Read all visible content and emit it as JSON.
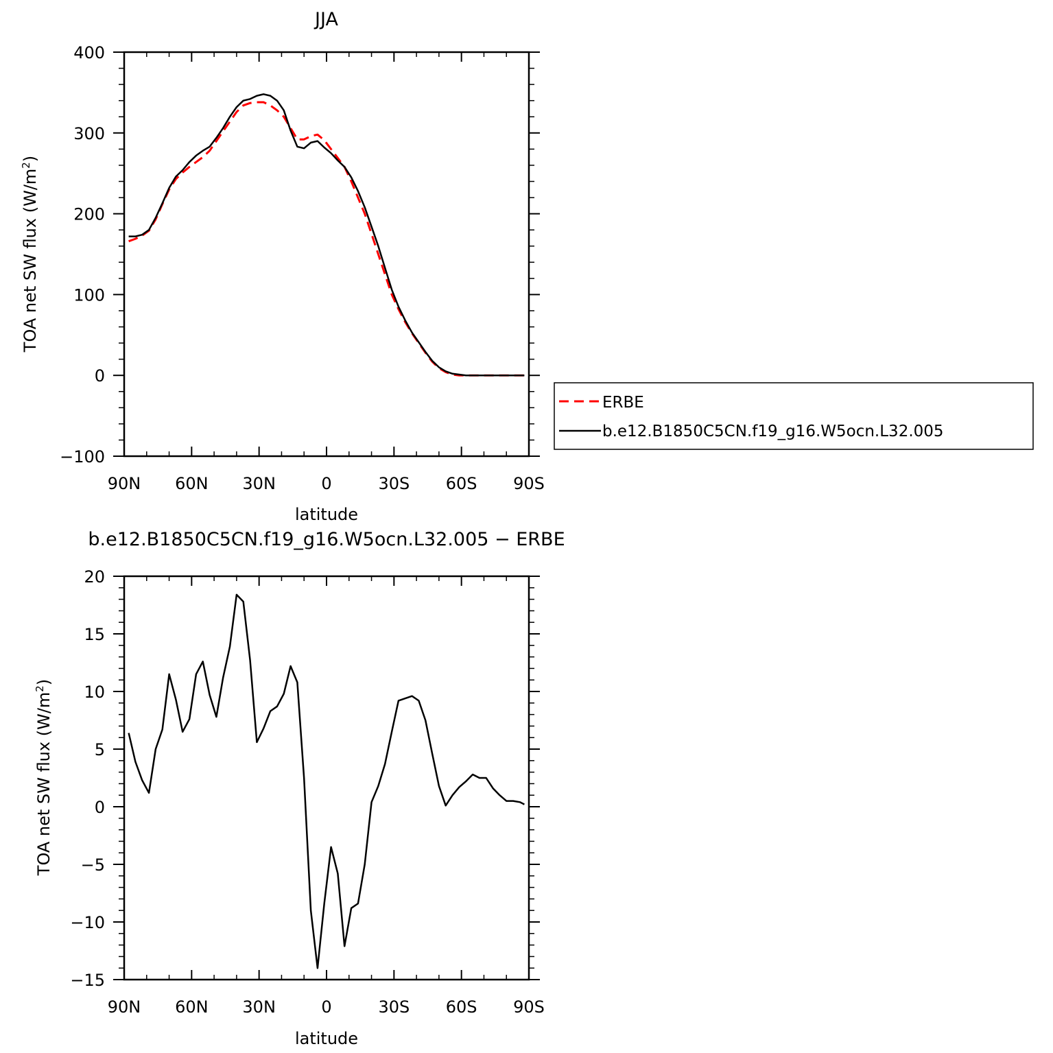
{
  "chart_data": [
    {
      "type": "line",
      "title": "JJA",
      "xlabel": "latitude",
      "ylabel": "TOA net SW flux (W/m",
      "ylabel_sup": "2",
      "ylabel_close": ")",
      "xlim": [
        90,
        -90
      ],
      "ylim": [
        -100,
        400
      ],
      "x_ticks": [
        90,
        60,
        30,
        0,
        -30,
        -60,
        -90
      ],
      "x_tick_labels": [
        "90N",
        "60N",
        "30N",
        "0",
        "30S",
        "60S",
        "90S"
      ],
      "y_ticks": [
        -100,
        0,
        100,
        200,
        300,
        400
      ],
      "y_tick_labels": [
        "−100",
        "0",
        "100",
        "200",
        "300",
        "400"
      ],
      "legend": {
        "placement": "right",
        "entries": [
          {
            "label": "ERBE",
            "color": "#ff0000",
            "dash": "dashed"
          },
          {
            "label": "b.e12.B1850C5CN.f19_g16.W5ocn.L32.005",
            "color": "#000000",
            "dash": "solid"
          }
        ]
      },
      "x": [
        88,
        85,
        82,
        79,
        76,
        73,
        70,
        67,
        64,
        61,
        58,
        55,
        52,
        49,
        46,
        43,
        40,
        37,
        34,
        31,
        28,
        25,
        22,
        19,
        16,
        13,
        10,
        7,
        4,
        1,
        -2,
        -5,
        -8,
        -11,
        -14,
        -17,
        -20,
        -23,
        -26,
        -29,
        -32,
        -35,
        -38,
        -41,
        -44,
        -47,
        -50,
        -53,
        -56,
        -59,
        -62,
        -65,
        -68,
        -71,
        -74,
        -77,
        -80,
        -83,
        -86,
        -88
      ],
      "series": [
        {
          "name": "ERBE",
          "color": "#ff0000",
          "dash": "dashed",
          "values": [
            166,
            169,
            173,
            179,
            193,
            212,
            230,
            243,
            251,
            258,
            264,
            270,
            278,
            290,
            302,
            314,
            326,
            334,
            337,
            338,
            338,
            334,
            328,
            320,
            306,
            292,
            292,
            296,
            298,
            291,
            280,
            269,
            258,
            240,
            220,
            200,
            175,
            150,
            125,
            100,
            82,
            66,
            52,
            40,
            28,
            17,
            9,
            4,
            1,
            0,
            0,
            0,
            0,
            0,
            0,
            0,
            0,
            0,
            0,
            0
          ]
        },
        {
          "name": "b.e12.B1850C5CN.f19_g16.W5ocn.L32.005",
          "color": "#000000",
          "dash": "solid",
          "values": [
            172,
            172,
            174,
            180,
            195,
            213,
            232,
            246,
            254,
            264,
            272,
            278,
            283,
            294,
            306,
            320,
            332,
            340,
            342,
            346,
            348,
            346,
            340,
            328,
            303,
            283,
            281,
            288,
            290,
            282,
            275,
            266,
            258,
            245,
            228,
            208,
            184,
            160,
            133,
            106,
            85,
            68,
            53,
            41,
            29,
            18,
            10,
            5,
            2,
            1,
            0,
            0,
            0,
            0,
            0,
            0,
            0,
            0,
            0,
            0
          ]
        }
      ]
    },
    {
      "type": "line",
      "title": "b.e12.B1850C5CN.f19_g16.W5ocn.L32.005 − ERBE",
      "xlabel": "latitude",
      "ylabel": "TOA net SW flux (W/m",
      "ylabel_sup": "2",
      "ylabel_close": ")",
      "xlim": [
        90,
        -90
      ],
      "ylim": [
        -15,
        20
      ],
      "x_ticks": [
        90,
        60,
        30,
        0,
        -30,
        -60,
        -90
      ],
      "x_tick_labels": [
        "90N",
        "60N",
        "30N",
        "0",
        "30S",
        "60S",
        "90S"
      ],
      "y_ticks": [
        -15,
        -10,
        -5,
        0,
        5,
        10,
        15,
        20
      ],
      "y_tick_labels": [
        "−15",
        "−10",
        "−5",
        "0",
        "5",
        "10",
        "15",
        "20"
      ],
      "x": [
        88,
        85,
        82,
        79,
        76,
        73,
        70,
        67,
        64,
        61,
        58,
        55,
        52,
        49,
        46,
        43,
        40,
        37,
        34,
        31,
        28,
        25,
        22,
        19,
        16,
        13,
        10,
        7,
        4,
        1,
        -2,
        -5,
        -8,
        -11,
        -14,
        -17,
        -20,
        -23,
        -26,
        -29,
        -32,
        -35,
        -38,
        -41,
        -44,
        -47,
        -50,
        -53,
        -56,
        -59,
        -62,
        -65,
        -68,
        -71,
        -74,
        -77,
        -80,
        -83,
        -86,
        -88
      ],
      "series": [
        {
          "name": "",
          "color": "#000000",
          "dash": "solid",
          "values": [
            6.4,
            3.9,
            2.3,
            1.2,
            5.0,
            6.7,
            11.5,
            9.3,
            6.5,
            7.6,
            11.5,
            12.6,
            9.7,
            7.8,
            11.2,
            13.9,
            18.4,
            17.8,
            12.7,
            5.6,
            6.8,
            8.3,
            8.7,
            9.8,
            12.2,
            10.8,
            2.5,
            -9.0,
            -14.0,
            -8.4,
            -3.5,
            -5.8,
            -12.1,
            -8.8,
            -8.4,
            -5.0,
            0.4,
            1.8,
            3.7,
            6.5,
            9.2,
            9.4,
            9.6,
            9.2,
            7.5,
            4.6,
            1.8,
            0.1,
            1.0,
            1.7,
            2.2,
            2.8,
            2.5,
            2.5,
            1.6,
            1.0,
            0.5,
            0.5,
            0.4,
            0.2
          ]
        }
      ]
    }
  ]
}
